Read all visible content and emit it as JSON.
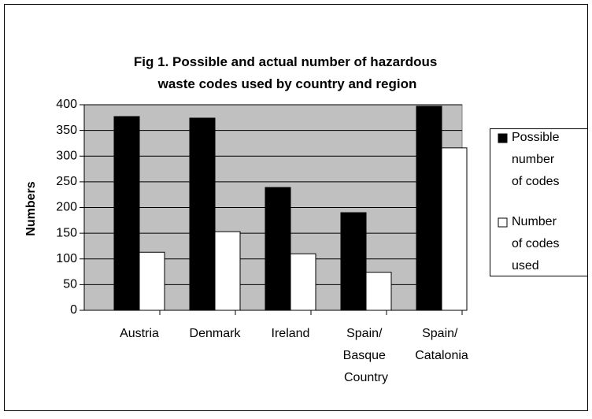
{
  "chart_data": {
    "type": "bar",
    "title": "Fig 1. Possible and actual number of hazardous waste codes used by country and region",
    "y_label": "Numbers",
    "categories": [
      "Austria",
      "Denmark",
      "Ireland",
      "Spain/ Basque Country",
      "Spain/ Catalonia"
    ],
    "series": [
      {
        "name": "Possible number of codes",
        "color": "#000000",
        "values": [
          377,
          374,
          239,
          190,
          397
        ]
      },
      {
        "name": "Number of codes used",
        "color": "#ffffff",
        "values": [
          113,
          153,
          110,
          74,
          316
        ]
      }
    ],
    "ylim": [
      0,
      400
    ],
    "yticks": [
      0,
      50,
      100,
      150,
      200,
      250,
      300,
      350,
      400
    ],
    "grid": true,
    "legend": "right"
  }
}
